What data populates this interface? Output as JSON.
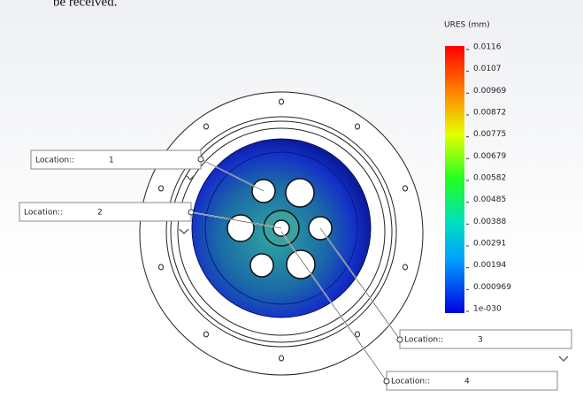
{
  "header_text": "be received.",
  "legend": {
    "title": "URES (mm)",
    "labels": [
      "0.0116",
      "0.0107",
      "0.00969",
      "0.00872",
      "0.00775",
      "0.00679",
      "0.00582",
      "0.00485",
      "0.00388",
      "0.00291",
      "0.00194",
      "0.000969",
      "1e-030"
    ]
  },
  "callouts": [
    {
      "label": "Location::",
      "value": "1"
    },
    {
      "label": "Location::",
      "value": "2"
    },
    {
      "label": "Location::",
      "value": "3"
    },
    {
      "label": "Location::",
      "value": "4"
    }
  ]
}
